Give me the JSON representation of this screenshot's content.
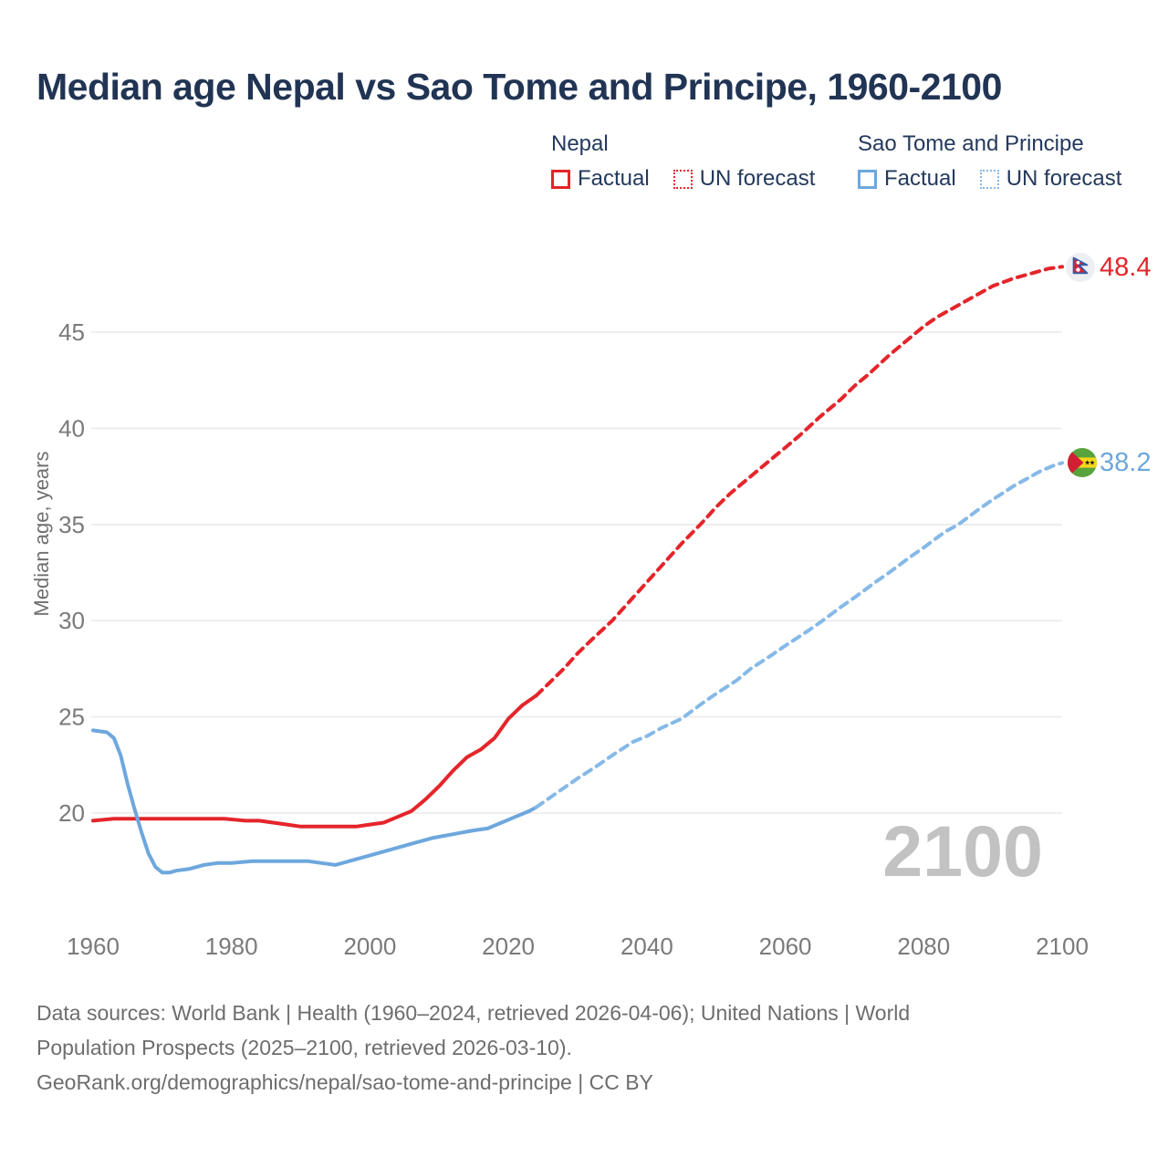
{
  "header": {
    "title": "Median age Nepal vs Sao Tome and Principe, 1960-2100"
  },
  "legend": {
    "groups": [
      {
        "title": "Nepal",
        "items": [
          {
            "label": "Factual",
            "style": "solid"
          },
          {
            "label": "UN forecast",
            "style": "dotted"
          }
        ]
      },
      {
        "title": "Sao Tome and Principe",
        "items": [
          {
            "label": "Factual",
            "style": "solid"
          },
          {
            "label": "UN forecast",
            "style": "dotted"
          }
        ]
      }
    ]
  },
  "colors": {
    "nepal": "#e4252a",
    "nepal_forecast": "#e4252a",
    "sao_tome": "#6da7dd",
    "sao_tome_forecast": "#85b9e8",
    "title_text": "#213454",
    "axis_text": "#7a7a7a",
    "gridline": "#eaeaea",
    "watermark": "#c2c2c2",
    "footer_text": "#6d6d6d"
  },
  "end_labels": {
    "nepal": "48.4",
    "sao_tome": "38.2"
  },
  "watermark": "2100",
  "y_axis_title": "Median age, years",
  "footer": {
    "lines": [
      "Data sources: World Bank | Health (1960–2024, retrieved 2026-04-06); United Nations | World",
      "Population Prospects (2025–2100, retrieved 2026-03-10).",
      "GeoRank.org/demographics/nepal/sao-tome-and-principe | CC BY"
    ]
  },
  "chart_data": {
    "type": "line",
    "title": "Median age Nepal vs Sao Tome and Principe, 1960-2100",
    "xlabel": "",
    "ylabel": "Median age, years",
    "xlim": [
      1960,
      2100
    ],
    "ylim": [
      16,
      50
    ],
    "x_ticks": [
      1960,
      1980,
      2000,
      2020,
      2040,
      2060,
      2080,
      2100
    ],
    "y_ticks": [
      20,
      25,
      30,
      35,
      40,
      45
    ],
    "grid": "horizontal",
    "legend_position": "top-right",
    "end_values": {
      "nepal": 48.4,
      "sao_tome": 38.2
    },
    "series": [
      {
        "name": "Nepal — Factual",
        "style": "solid",
        "color_key": "nepal",
        "points": [
          [
            1960,
            19.6
          ],
          [
            1963,
            19.7
          ],
          [
            1967,
            19.7
          ],
          [
            1971,
            19.7
          ],
          [
            1975,
            19.7
          ],
          [
            1979,
            19.7
          ],
          [
            1982,
            19.6
          ],
          [
            1984,
            19.6
          ],
          [
            1986,
            19.5
          ],
          [
            1988,
            19.4
          ],
          [
            1990,
            19.3
          ],
          [
            1994,
            19.3
          ],
          [
            1998,
            19.3
          ],
          [
            2000,
            19.4
          ],
          [
            2002,
            19.5
          ],
          [
            2004,
            19.8
          ],
          [
            2006,
            20.1
          ],
          [
            2008,
            20.7
          ],
          [
            2010,
            21.4
          ],
          [
            2012,
            22.2
          ],
          [
            2014,
            22.9
          ],
          [
            2016,
            23.3
          ],
          [
            2018,
            23.9
          ],
          [
            2020,
            24.9
          ],
          [
            2022,
            25.6
          ],
          [
            2024,
            26.1
          ]
        ]
      },
      {
        "name": "Nepal — UN forecast",
        "style": "dashed",
        "color_key": "nepal_forecast",
        "points": [
          [
            2024,
            26.1
          ],
          [
            2026,
            26.8
          ],
          [
            2028,
            27.5
          ],
          [
            2030,
            28.3
          ],
          [
            2032,
            29.0
          ],
          [
            2035,
            30.0
          ],
          [
            2038,
            31.2
          ],
          [
            2040,
            32.0
          ],
          [
            2042,
            32.8
          ],
          [
            2045,
            34.0
          ],
          [
            2048,
            35.1
          ],
          [
            2050,
            35.9
          ],
          [
            2052,
            36.6
          ],
          [
            2055,
            37.5
          ],
          [
            2058,
            38.4
          ],
          [
            2060,
            39.0
          ],
          [
            2062,
            39.6
          ],
          [
            2065,
            40.6
          ],
          [
            2068,
            41.5
          ],
          [
            2070,
            42.2
          ],
          [
            2072,
            42.8
          ],
          [
            2075,
            43.8
          ],
          [
            2078,
            44.7
          ],
          [
            2080,
            45.3
          ],
          [
            2082,
            45.8
          ],
          [
            2085,
            46.4
          ],
          [
            2088,
            47.0
          ],
          [
            2090,
            47.4
          ],
          [
            2093,
            47.8
          ],
          [
            2096,
            48.1
          ],
          [
            2098,
            48.3
          ],
          [
            2100,
            48.4
          ]
        ]
      },
      {
        "name": "Sao Tome and Principe — Factual",
        "style": "solid",
        "color_key": "sao_tome",
        "points": [
          [
            1960,
            24.3
          ],
          [
            1962,
            24.2
          ],
          [
            1963,
            23.9
          ],
          [
            1964,
            23.0
          ],
          [
            1965,
            21.5
          ],
          [
            1966,
            20.2
          ],
          [
            1967,
            19.0
          ],
          [
            1968,
            17.9
          ],
          [
            1969,
            17.2
          ],
          [
            1970,
            16.9
          ],
          [
            1971,
            16.9
          ],
          [
            1972,
            17.0
          ],
          [
            1974,
            17.1
          ],
          [
            1976,
            17.3
          ],
          [
            1978,
            17.4
          ],
          [
            1980,
            17.4
          ],
          [
            1983,
            17.5
          ],
          [
            1986,
            17.5
          ],
          [
            1989,
            17.5
          ],
          [
            1991,
            17.5
          ],
          [
            1993,
            17.4
          ],
          [
            1995,
            17.3
          ],
          [
            1997,
            17.5
          ],
          [
            2000,
            17.8
          ],
          [
            2003,
            18.1
          ],
          [
            2006,
            18.4
          ],
          [
            2009,
            18.7
          ],
          [
            2012,
            18.9
          ],
          [
            2015,
            19.1
          ],
          [
            2017,
            19.2
          ],
          [
            2019,
            19.5
          ],
          [
            2021,
            19.8
          ],
          [
            2023,
            20.1
          ],
          [
            2024,
            20.3
          ]
        ]
      },
      {
        "name": "Sao Tome and Principe — UN forecast",
        "style": "dashed",
        "color_key": "sao_tome_forecast",
        "points": [
          [
            2024,
            20.3
          ],
          [
            2026,
            20.8
          ],
          [
            2028,
            21.3
          ],
          [
            2030,
            21.8
          ],
          [
            2033,
            22.5
          ],
          [
            2035,
            23.0
          ],
          [
            2038,
            23.7
          ],
          [
            2040,
            24.0
          ],
          [
            2042,
            24.4
          ],
          [
            2045,
            24.9
          ],
          [
            2048,
            25.7
          ],
          [
            2050,
            26.2
          ],
          [
            2053,
            26.9
          ],
          [
            2055,
            27.5
          ],
          [
            2058,
            28.2
          ],
          [
            2060,
            28.7
          ],
          [
            2063,
            29.4
          ],
          [
            2065,
            29.9
          ],
          [
            2068,
            30.7
          ],
          [
            2070,
            31.2
          ],
          [
            2073,
            32.0
          ],
          [
            2075,
            32.5
          ],
          [
            2078,
            33.3
          ],
          [
            2080,
            33.8
          ],
          [
            2083,
            34.6
          ],
          [
            2085,
            35.0
          ],
          [
            2088,
            35.8
          ],
          [
            2090,
            36.3
          ],
          [
            2093,
            37.0
          ],
          [
            2095,
            37.4
          ],
          [
            2097,
            37.8
          ],
          [
            2099,
            38.1
          ],
          [
            2100,
            38.2
          ]
        ]
      }
    ]
  }
}
